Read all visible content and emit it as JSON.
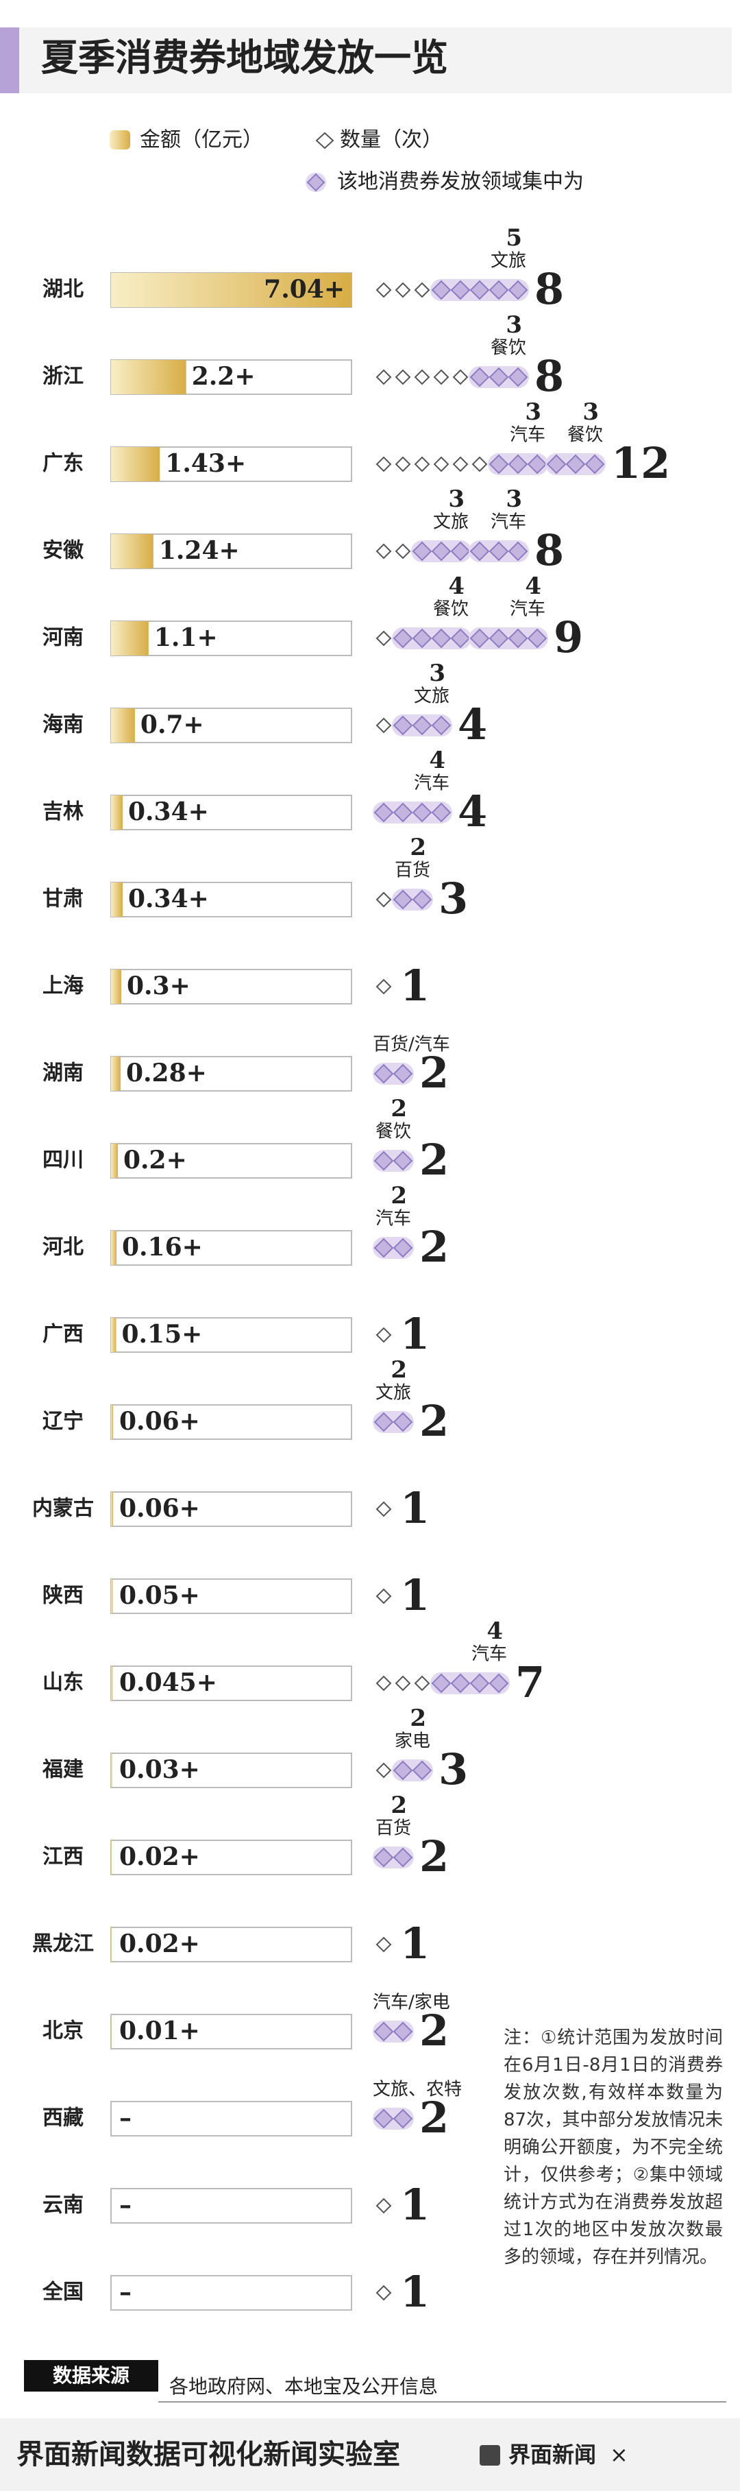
{
  "title": "夏季消费券地域发放一览",
  "legend": {
    "amount": "金额（亿元）",
    "count": "数量（次）",
    "focus": "该地消费券发放领域集中为"
  },
  "chart_data": {
    "type": "bar",
    "categories": [
      "湖北",
      "浙江",
      "广东",
      "安徽",
      "河南",
      "海南",
      "吉林",
      "甘肃",
      "上海",
      "湖南",
      "四川",
      "河北",
      "广西",
      "辽宁",
      "内蒙古",
      "陕西",
      "山东",
      "福建",
      "江西",
      "黑龙江",
      "北京",
      "西藏",
      "云南",
      "全国"
    ],
    "values": [
      7.04,
      2.2,
      1.43,
      1.24,
      1.1,
      0.7,
      0.34,
      0.34,
      0.3,
      0.28,
      0.2,
      0.16,
      0.15,
      0.06,
      0.06,
      0.05,
      0.045,
      0.03,
      0.02,
      0.02,
      0.01,
      null,
      null,
      null
    ],
    "value_labels": [
      "7.04+",
      "2.2+",
      "1.43+",
      "1.24+",
      "1.1+",
      "0.7+",
      "0.34+",
      "0.34+",
      "0.3+",
      "0.28+",
      "0.2+",
      "0.16+",
      "0.15+",
      "0.06+",
      "0.06+",
      "0.05+",
      "0.045+",
      "0.03+",
      "0.02+",
      "0.02+",
      "0.01+",
      "–",
      "–",
      "–"
    ],
    "counts": [
      8,
      8,
      12,
      8,
      9,
      4,
      4,
      3,
      1,
      2,
      2,
      2,
      1,
      2,
      1,
      1,
      7,
      3,
      2,
      1,
      2,
      2,
      1,
      1
    ],
    "focus": [
      [
        {
          "label": "文旅",
          "count": 5
        }
      ],
      [
        {
          "label": "餐饮",
          "count": 3
        }
      ],
      [
        {
          "label": "汽车",
          "count": 3
        },
        {
          "label": "餐饮",
          "count": 3
        }
      ],
      [
        {
          "label": "文旅",
          "count": 3
        },
        {
          "label": "汽车",
          "count": 3
        }
      ],
      [
        {
          "label": "餐饮",
          "count": 4
        },
        {
          "label": "汽车",
          "count": 4
        }
      ],
      [
        {
          "label": "文旅",
          "count": 3
        }
      ],
      [
        {
          "label": "汽车",
          "count": 4
        }
      ],
      [
        {
          "label": "百货",
          "count": 2
        }
      ],
      [],
      [
        {
          "label": "百货/汽车"
        }
      ],
      [
        {
          "label": "餐饮",
          "count": 2
        }
      ],
      [
        {
          "label": "汽车",
          "count": 2
        }
      ],
      [],
      [
        {
          "label": "文旅",
          "count": 2
        }
      ],
      [],
      [],
      [
        {
          "label": "汽车",
          "count": 4
        }
      ],
      [
        {
          "label": "家电",
          "count": 2
        }
      ],
      [
        {
          "label": "百货",
          "count": 2
        }
      ],
      [],
      [
        {
          "label": "汽车/家电"
        }
      ],
      [
        {
          "label": "文旅、农特"
        }
      ],
      [],
      []
    ]
  },
  "note": "注：①统计范围为发放时间在6月1日-8月1日的消费券发放次数,有效样本数量为87次，其中部分发放情况未明确公开额度，为不完全统计，仅供参考；②集中领域统计方式为在消费券发放超过1次的地区中发放次数最多的领域，存在并列情况。",
  "source": {
    "label": "数据来源",
    "text": "各地政府网、本地宝及公开信息"
  },
  "footer": {
    "title": "界面新闻数据可视化新闻实验室",
    "brand": "界面新闻",
    "cross": "×"
  }
}
